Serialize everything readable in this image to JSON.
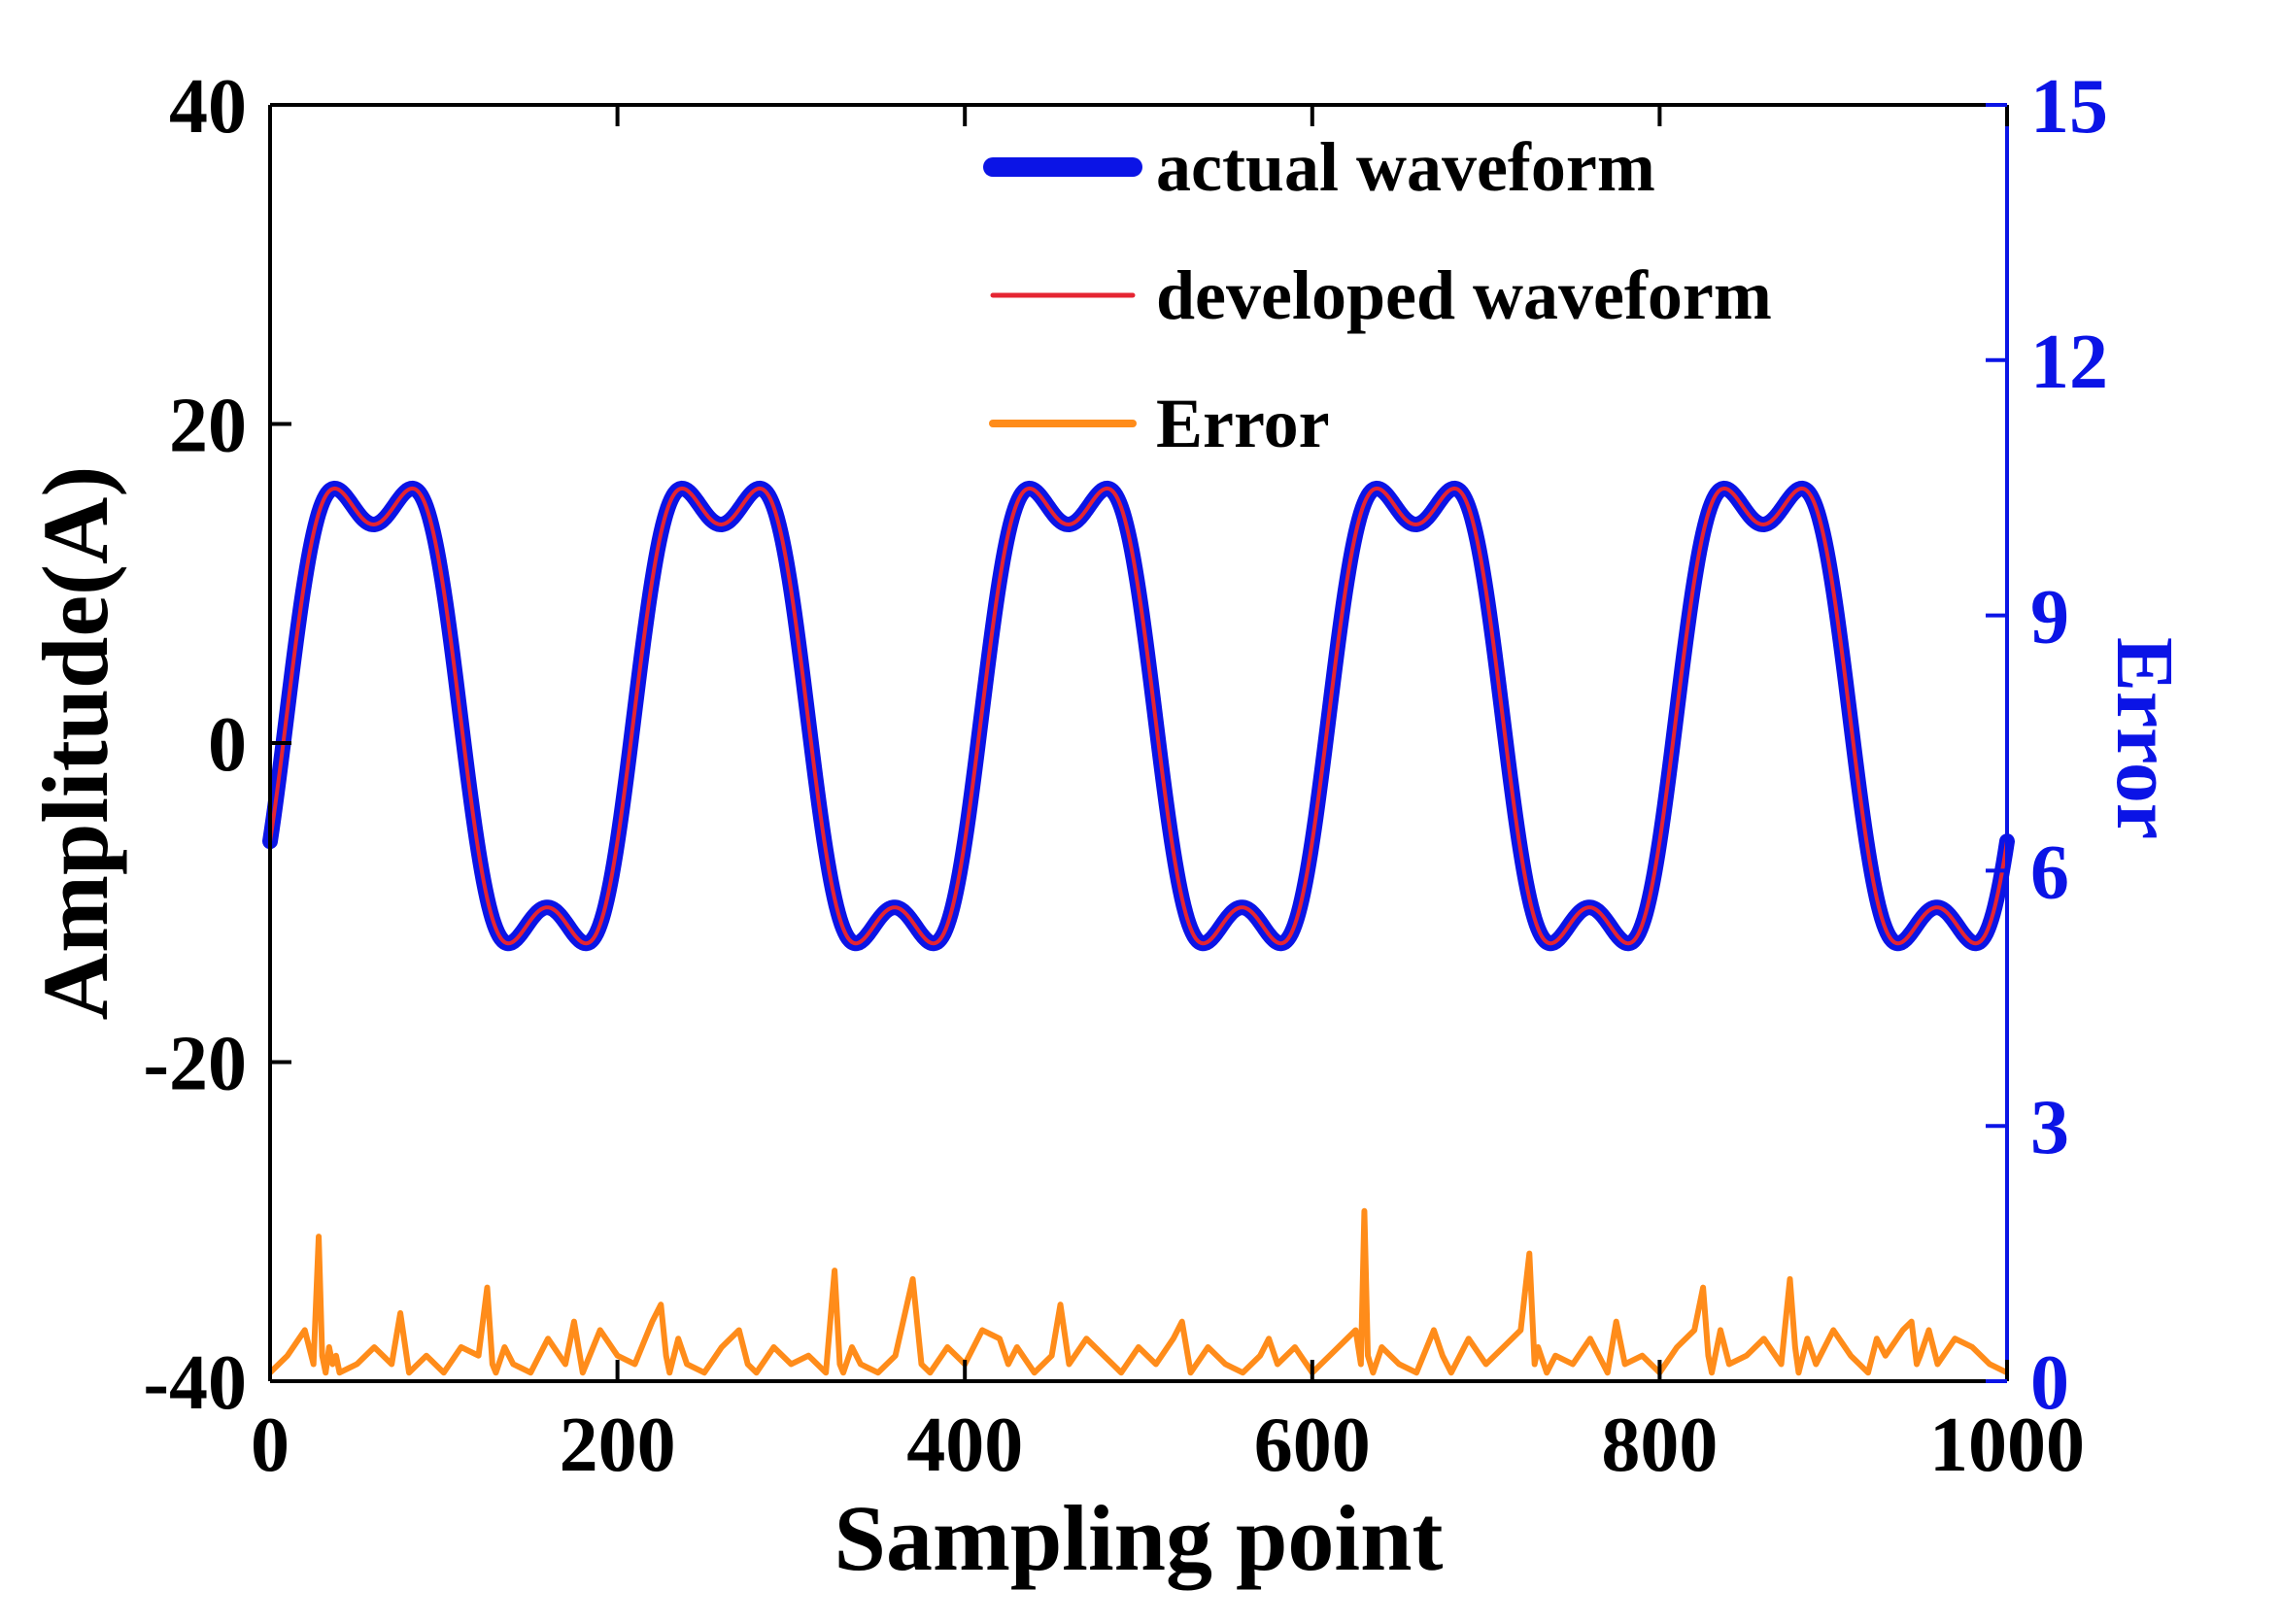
{
  "chart_data": {
    "type": "line",
    "title": "",
    "xlabel": "Sampling point",
    "ylabel_left": "Amplitude(A)",
    "ylabel_right": "Error",
    "xlim": [
      0,
      1000
    ],
    "ylim_left": [
      -40,
      40
    ],
    "ylim_right": [
      0,
      15
    ],
    "x_ticks": [
      "0",
      "200",
      "400",
      "600",
      "800",
      "1000"
    ],
    "y_left_ticks": [
      "40",
      "20",
      "0",
      "-20",
      "-40"
    ],
    "y_right_ticks": [
      "15",
      "12",
      "9",
      "6",
      "3",
      "0"
    ],
    "grid": false,
    "legend_position": "top-right",
    "waveform_model": {
      "period": 200,
      "fundamental_amplitude": 16,
      "fundamental_phase_offset": -0.3,
      "third_harmonic_amplitude": 4,
      "third_harmonic_phase_offset": -0.9,
      "offset": 1.7,
      "samples": 1001
    },
    "series": [
      {
        "name": "actual waveform",
        "axis": "left",
        "color": "#0b14e6",
        "note": "plotted from waveform_model"
      },
      {
        "name": "developed waveform",
        "axis": "left",
        "color": "#e52532",
        "note": "plotted from waveform_model"
      },
      {
        "name": "Error",
        "axis": "right",
        "color": "#ff8c1a",
        "x": [
          0,
          10,
          20,
          25,
          28,
          30,
          32,
          34,
          36,
          38,
          40,
          50,
          60,
          70,
          75,
          80,
          90,
          100,
          110,
          120,
          125,
          128,
          130,
          135,
          140,
          150,
          160,
          170,
          175,
          180,
          190,
          200,
          210,
          220,
          225,
          228,
          230,
          235,
          240,
          250,
          260,
          270,
          275,
          280,
          290,
          300,
          310,
          320,
          325,
          328,
          330,
          335,
          340,
          350,
          360,
          370,
          375,
          380,
          390,
          400,
          410,
          420,
          425,
          430,
          440,
          450,
          455,
          460,
          470,
          480,
          490,
          500,
          510,
          520,
          525,
          530,
          540,
          550,
          560,
          570,
          575,
          580,
          590,
          600,
          610,
          620,
          625,
          628,
          630,
          632,
          635,
          640,
          650,
          660,
          670,
          675,
          680,
          690,
          700,
          710,
          720,
          725,
          728,
          730,
          735,
          740,
          750,
          760,
          770,
          775,
          780,
          790,
          800,
          810,
          820,
          825,
          828,
          830,
          835,
          840,
          850,
          860,
          870,
          875,
          878,
          880,
          885,
          890,
          900,
          910,
          920,
          925,
          930,
          940,
          945,
          948,
          950,
          955,
          960,
          970,
          980,
          990,
          1000
        ],
        "values": [
          0.1,
          0.3,
          0.6,
          0.2,
          1.7,
          0.3,
          0.1,
          0.4,
          0.2,
          0.3,
          0.1,
          0.2,
          0.4,
          0.2,
          0.8,
          0.1,
          0.3,
          0.1,
          0.4,
          0.3,
          1.1,
          0.2,
          0.1,
          0.4,
          0.2,
          0.1,
          0.5,
          0.2,
          0.7,
          0.1,
          0.6,
          0.3,
          0.2,
          0.7,
          0.9,
          0.3,
          0.1,
          0.5,
          0.2,
          0.1,
          0.4,
          0.6,
          0.2,
          0.1,
          0.4,
          0.2,
          0.3,
          0.1,
          1.3,
          0.2,
          0.1,
          0.4,
          0.2,
          0.1,
          0.3,
          1.2,
          0.2,
          0.1,
          0.4,
          0.2,
          0.6,
          0.5,
          0.2,
          0.4,
          0.1,
          0.3,
          0.9,
          0.2,
          0.5,
          0.3,
          0.1,
          0.4,
          0.2,
          0.5,
          0.7,
          0.1,
          0.4,
          0.2,
          0.1,
          0.3,
          0.5,
          0.2,
          0.4,
          0.1,
          0.3,
          0.5,
          0.6,
          0.2,
          2.0,
          0.3,
          0.1,
          0.4,
          0.2,
          0.1,
          0.6,
          0.3,
          0.1,
          0.5,
          0.2,
          0.4,
          0.6,
          1.5,
          0.2,
          0.4,
          0.1,
          0.3,
          0.2,
          0.5,
          0.1,
          0.7,
          0.2,
          0.3,
          0.1,
          0.4,
          0.6,
          1.1,
          0.3,
          0.1,
          0.6,
          0.2,
          0.3,
          0.5,
          0.2,
          1.2,
          0.4,
          0.1,
          0.5,
          0.2,
          0.6,
          0.3,
          0.1,
          0.5,
          0.3,
          0.6,
          0.7,
          0.2,
          0.3,
          0.6,
          0.2,
          0.5,
          0.4,
          0.2,
          0.1
        ]
      }
    ]
  }
}
